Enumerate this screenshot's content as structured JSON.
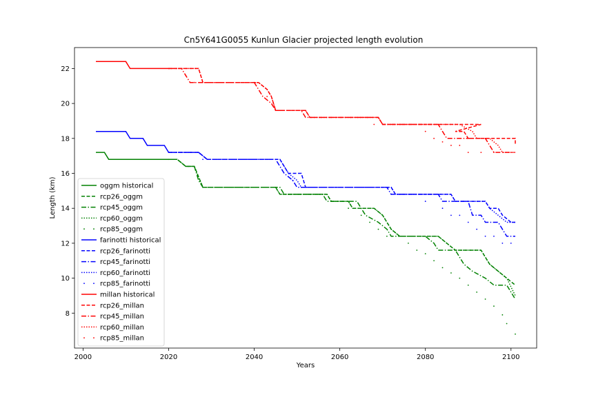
{
  "chart_data": {
    "type": "line",
    "title": "Cn5Y641G0055 Kunlun Glacier projected length evolution",
    "xlabel": "Years",
    "ylabel": "Length (km)",
    "xlim": [
      1998,
      2106
    ],
    "ylim": [
      6.0,
      23.2
    ],
    "xticks": [
      2000,
      2020,
      2040,
      2060,
      2080,
      2100
    ],
    "yticks": [
      8,
      10,
      12,
      14,
      16,
      18,
      20,
      22
    ],
    "grid": false,
    "legend_position": "lower-left",
    "colors": {
      "oggm": "#008000",
      "farinotti": "#0000ff",
      "millan": "#ff0000"
    },
    "series": [
      {
        "name": "oggm historical",
        "color": "#008000",
        "style": "solid",
        "points": [
          [
            2003,
            17.2
          ],
          [
            2005,
            17.2
          ],
          [
            2006,
            16.8
          ],
          [
            2020,
            16.8
          ]
        ]
      },
      {
        "name": "rcp26_oggm",
        "color": "#008000",
        "style": "dashed",
        "points": [
          [
            2020,
            16.8
          ],
          [
            2022,
            16.8
          ],
          [
            2024,
            16.4
          ],
          [
            2026,
            16.4
          ],
          [
            2028,
            15.2
          ],
          [
            2045,
            15.2
          ],
          [
            2046,
            14.8
          ],
          [
            2057,
            14.8
          ],
          [
            2058,
            14.4
          ],
          [
            2062,
            14.4
          ],
          [
            2063,
            14.0
          ],
          [
            2068,
            14.0
          ],
          [
            2070,
            13.6
          ],
          [
            2071,
            13.2
          ],
          [
            2072,
            12.8
          ],
          [
            2074,
            12.4
          ],
          [
            2083,
            12.4
          ],
          [
            2085,
            12.0
          ],
          [
            2087,
            11.6
          ],
          [
            2093,
            11.6
          ],
          [
            2094,
            11.2
          ],
          [
            2095,
            10.8
          ],
          [
            2097,
            10.4
          ],
          [
            2099,
            10.0
          ],
          [
            2101,
            9.6
          ]
        ]
      },
      {
        "name": "rcp45_oggm",
        "color": "#008000",
        "style": "dashdot",
        "points": [
          [
            2020,
            16.8
          ],
          [
            2022,
            16.8
          ],
          [
            2024,
            16.4
          ],
          [
            2026,
            16.4
          ],
          [
            2027,
            15.6
          ],
          [
            2028,
            15.2
          ],
          [
            2046,
            15.2
          ],
          [
            2047,
            14.8
          ],
          [
            2056,
            14.8
          ],
          [
            2057,
            14.4
          ],
          [
            2064,
            14.4
          ],
          [
            2065,
            14.0
          ],
          [
            2066,
            13.6
          ],
          [
            2069,
            13.2
          ],
          [
            2071,
            12.8
          ],
          [
            2072,
            12.4
          ],
          [
            2080,
            12.4
          ],
          [
            2082,
            12.0
          ],
          [
            2083,
            11.6
          ],
          [
            2087,
            11.6
          ],
          [
            2088,
            11.2
          ],
          [
            2089,
            10.8
          ],
          [
            2091,
            10.4
          ],
          [
            2094,
            10.0
          ],
          [
            2096,
            9.6
          ],
          [
            2099,
            9.6
          ],
          [
            2101,
            8.8
          ]
        ]
      },
      {
        "name": "rcp60_oggm",
        "color": "#008000",
        "style": "dotted",
        "points": [
          [
            2020,
            16.8
          ],
          [
            2022,
            16.8
          ],
          [
            2024,
            16.4
          ],
          [
            2026,
            16.4
          ],
          [
            2028,
            15.2
          ],
          [
            2045,
            15.2
          ],
          [
            2046,
            14.8
          ],
          [
            2057,
            14.8
          ],
          [
            2058,
            14.4
          ],
          [
            2062,
            14.4
          ],
          [
            2063,
            14.0
          ],
          [
            2068,
            14.0
          ],
          [
            2070,
            13.6
          ],
          [
            2071,
            13.2
          ],
          [
            2072,
            12.8
          ],
          [
            2074,
            12.4
          ],
          [
            2083,
            12.4
          ],
          [
            2085,
            12.0
          ],
          [
            2087,
            11.6
          ],
          [
            2093,
            11.6
          ],
          [
            2094,
            11.2
          ],
          [
            2095,
            10.8
          ],
          [
            2097,
            10.4
          ],
          [
            2099,
            10.0
          ],
          [
            2101,
            9.0
          ]
        ]
      },
      {
        "name": "rcp85_oggm",
        "color": "#008000",
        "style": "points",
        "points": [
          [
            2020,
            16.8
          ],
          [
            2025,
            16.4
          ],
          [
            2028,
            15.2
          ],
          [
            2045,
            15.2
          ],
          [
            2050,
            14.8
          ],
          [
            2056,
            14.8
          ],
          [
            2058,
            14.4
          ],
          [
            2062,
            14.0
          ],
          [
            2065,
            13.6
          ],
          [
            2067,
            13.2
          ],
          [
            2069,
            12.8
          ],
          [
            2071,
            12.4
          ],
          [
            2076,
            12.0
          ],
          [
            2078,
            11.6
          ],
          [
            2080,
            11.4
          ],
          [
            2082,
            11.0
          ],
          [
            2084,
            10.6
          ],
          [
            2086,
            10.3
          ],
          [
            2088,
            10.0
          ],
          [
            2090,
            9.6
          ],
          [
            2092,
            9.2
          ],
          [
            2094,
            8.8
          ],
          [
            2096,
            8.4
          ],
          [
            2098,
            7.9
          ],
          [
            2099,
            7.4
          ],
          [
            2101,
            6.8
          ]
        ]
      },
      {
        "name": "farinotti historical",
        "color": "#0000ff",
        "style": "solid",
        "points": [
          [
            2003,
            18.4
          ],
          [
            2010,
            18.4
          ],
          [
            2011,
            18.0
          ],
          [
            2014,
            18.0
          ],
          [
            2015,
            17.6
          ],
          [
            2019,
            17.6
          ],
          [
            2020,
            17.2
          ]
        ]
      },
      {
        "name": "rcp26_farinotti",
        "color": "#0000ff",
        "style": "dashed",
        "points": [
          [
            2020,
            17.2
          ],
          [
            2027,
            17.2
          ],
          [
            2029,
            16.8
          ],
          [
            2046,
            16.8
          ],
          [
            2047,
            16.4
          ],
          [
            2048,
            16.0
          ],
          [
            2051,
            16.0
          ],
          [
            2052,
            15.2
          ],
          [
            2072,
            15.2
          ],
          [
            2073,
            14.8
          ],
          [
            2086,
            14.8
          ],
          [
            2087,
            14.4
          ],
          [
            2094,
            14.4
          ],
          [
            2095,
            14.0
          ],
          [
            2097,
            14.0
          ],
          [
            2098,
            13.6
          ],
          [
            2100,
            13.2
          ],
          [
            2101,
            13.2
          ]
        ]
      },
      {
        "name": "rcp45_farinotti",
        "color": "#0000ff",
        "style": "dashdot",
        "points": [
          [
            2020,
            17.2
          ],
          [
            2027,
            17.2
          ],
          [
            2029,
            16.8
          ],
          [
            2045,
            16.8
          ],
          [
            2046,
            16.4
          ],
          [
            2047,
            16.0
          ],
          [
            2049,
            15.6
          ],
          [
            2050,
            15.2
          ],
          [
            2071,
            15.2
          ],
          [
            2072,
            14.8
          ],
          [
            2083,
            14.8
          ],
          [
            2084,
            14.4
          ],
          [
            2090,
            14.4
          ],
          [
            2091,
            13.6
          ],
          [
            2093,
            13.6
          ],
          [
            2094,
            13.2
          ],
          [
            2097,
            13.2
          ],
          [
            2099,
            12.4
          ],
          [
            2101,
            12.4
          ]
        ]
      },
      {
        "name": "rcp60_farinotti",
        "color": "#0000ff",
        "style": "dotted",
        "points": [
          [
            2020,
            17.2
          ],
          [
            2027,
            17.2
          ],
          [
            2029,
            16.8
          ],
          [
            2046,
            16.8
          ],
          [
            2047,
            16.4
          ],
          [
            2048,
            16.0
          ],
          [
            2050,
            15.6
          ],
          [
            2051,
            15.2
          ],
          [
            2072,
            15.2
          ],
          [
            2073,
            14.8
          ],
          [
            2086,
            14.8
          ],
          [
            2087,
            14.4
          ],
          [
            2094,
            14.4
          ],
          [
            2095,
            14.0
          ],
          [
            2097,
            13.6
          ],
          [
            2099,
            13.2
          ],
          [
            2101,
            13.2
          ]
        ]
      },
      {
        "name": "rcp85_farinotti",
        "color": "#0000ff",
        "style": "points",
        "points": [
          [
            2020,
            17.2
          ],
          [
            2028,
            16.8
          ],
          [
            2045,
            16.8
          ],
          [
            2049,
            15.6
          ],
          [
            2051,
            15.2
          ],
          [
            2070,
            15.2
          ],
          [
            2072,
            14.8
          ],
          [
            2080,
            14.4
          ],
          [
            2084,
            14.0
          ],
          [
            2086,
            13.6
          ],
          [
            2088,
            13.6
          ],
          [
            2090,
            13.2
          ],
          [
            2092,
            12.8
          ],
          [
            2094,
            12.4
          ],
          [
            2096,
            12.4
          ],
          [
            2098,
            12.0
          ],
          [
            2100,
            12.0
          ]
        ]
      },
      {
        "name": "millan historical",
        "color": "#ff0000",
        "style": "solid",
        "points": [
          [
            2003,
            22.4
          ],
          [
            2010,
            22.4
          ],
          [
            2011,
            22.0
          ],
          [
            2020,
            22.0
          ]
        ]
      },
      {
        "name": "rcp26_millan",
        "color": "#ff0000",
        "style": "dashed",
        "points": [
          [
            2020,
            22.0
          ],
          [
            2027,
            22.0
          ],
          [
            2028,
            21.2
          ],
          [
            2041,
            21.2
          ],
          [
            2043,
            20.8
          ],
          [
            2044,
            20.4
          ],
          [
            2045,
            19.6
          ],
          [
            2052,
            19.6
          ],
          [
            2053,
            19.2
          ],
          [
            2069,
            19.2
          ],
          [
            2070,
            18.8
          ],
          [
            2088,
            18.8
          ],
          [
            2089,
            18.8
          ],
          [
            2092,
            18.8
          ],
          [
            2093,
            18.8
          ],
          [
            2087,
            18.4
          ],
          [
            2089,
            18.4
          ],
          [
            2090,
            18.0
          ],
          [
            2101,
            18.0
          ],
          [
            2101,
            17.6
          ]
        ]
      },
      {
        "name": "rcp45_millan",
        "color": "#ff0000",
        "style": "dashdot",
        "points": [
          [
            2020,
            22.0
          ],
          [
            2023,
            22.0
          ],
          [
            2025,
            21.2
          ],
          [
            2040,
            21.2
          ],
          [
            2042,
            20.4
          ],
          [
            2044,
            20.0
          ],
          [
            2045,
            19.6
          ],
          [
            2051,
            19.6
          ],
          [
            2052,
            19.2
          ],
          [
            2069,
            19.2
          ],
          [
            2070,
            18.8
          ],
          [
            2083,
            18.8
          ],
          [
            2084,
            18.4
          ],
          [
            2085,
            18.0
          ],
          [
            2094,
            18.0
          ],
          [
            2095,
            17.6
          ],
          [
            2096,
            17.2
          ],
          [
            2101,
            17.2
          ]
        ]
      },
      {
        "name": "rcp60_millan",
        "color": "#ff0000",
        "style": "dotted",
        "points": [
          [
            2020,
            22.0
          ],
          [
            2027,
            22.0
          ],
          [
            2028,
            21.2
          ],
          [
            2041,
            21.2
          ],
          [
            2043,
            20.8
          ],
          [
            2044,
            20.4
          ],
          [
            2045,
            19.6
          ],
          [
            2052,
            19.6
          ],
          [
            2053,
            19.2
          ],
          [
            2069,
            19.2
          ],
          [
            2070,
            18.8
          ],
          [
            2088,
            18.8
          ],
          [
            2091,
            18.4
          ],
          [
            2092,
            18.0
          ],
          [
            2095,
            18.0
          ],
          [
            2097,
            17.6
          ],
          [
            2098,
            17.2
          ],
          [
            2101,
            17.2
          ]
        ]
      },
      {
        "name": "rcp85_millan",
        "color": "#ff0000",
        "style": "points",
        "points": [
          [
            2020,
            22.0
          ],
          [
            2024,
            21.6
          ],
          [
            2026,
            21.2
          ],
          [
            2040,
            21.2
          ],
          [
            2043,
            20.4
          ],
          [
            2045,
            19.6
          ],
          [
            2052,
            19.6
          ],
          [
            2053,
            19.2
          ],
          [
            2066,
            19.2
          ],
          [
            2068,
            18.8
          ],
          [
            2080,
            18.4
          ],
          [
            2082,
            18.0
          ],
          [
            2084,
            17.8
          ],
          [
            2086,
            17.6
          ],
          [
            2088,
            17.6
          ],
          [
            2090,
            17.2
          ],
          [
            2093,
            17.2
          ],
          [
            2096,
            17.2
          ]
        ]
      }
    ]
  }
}
